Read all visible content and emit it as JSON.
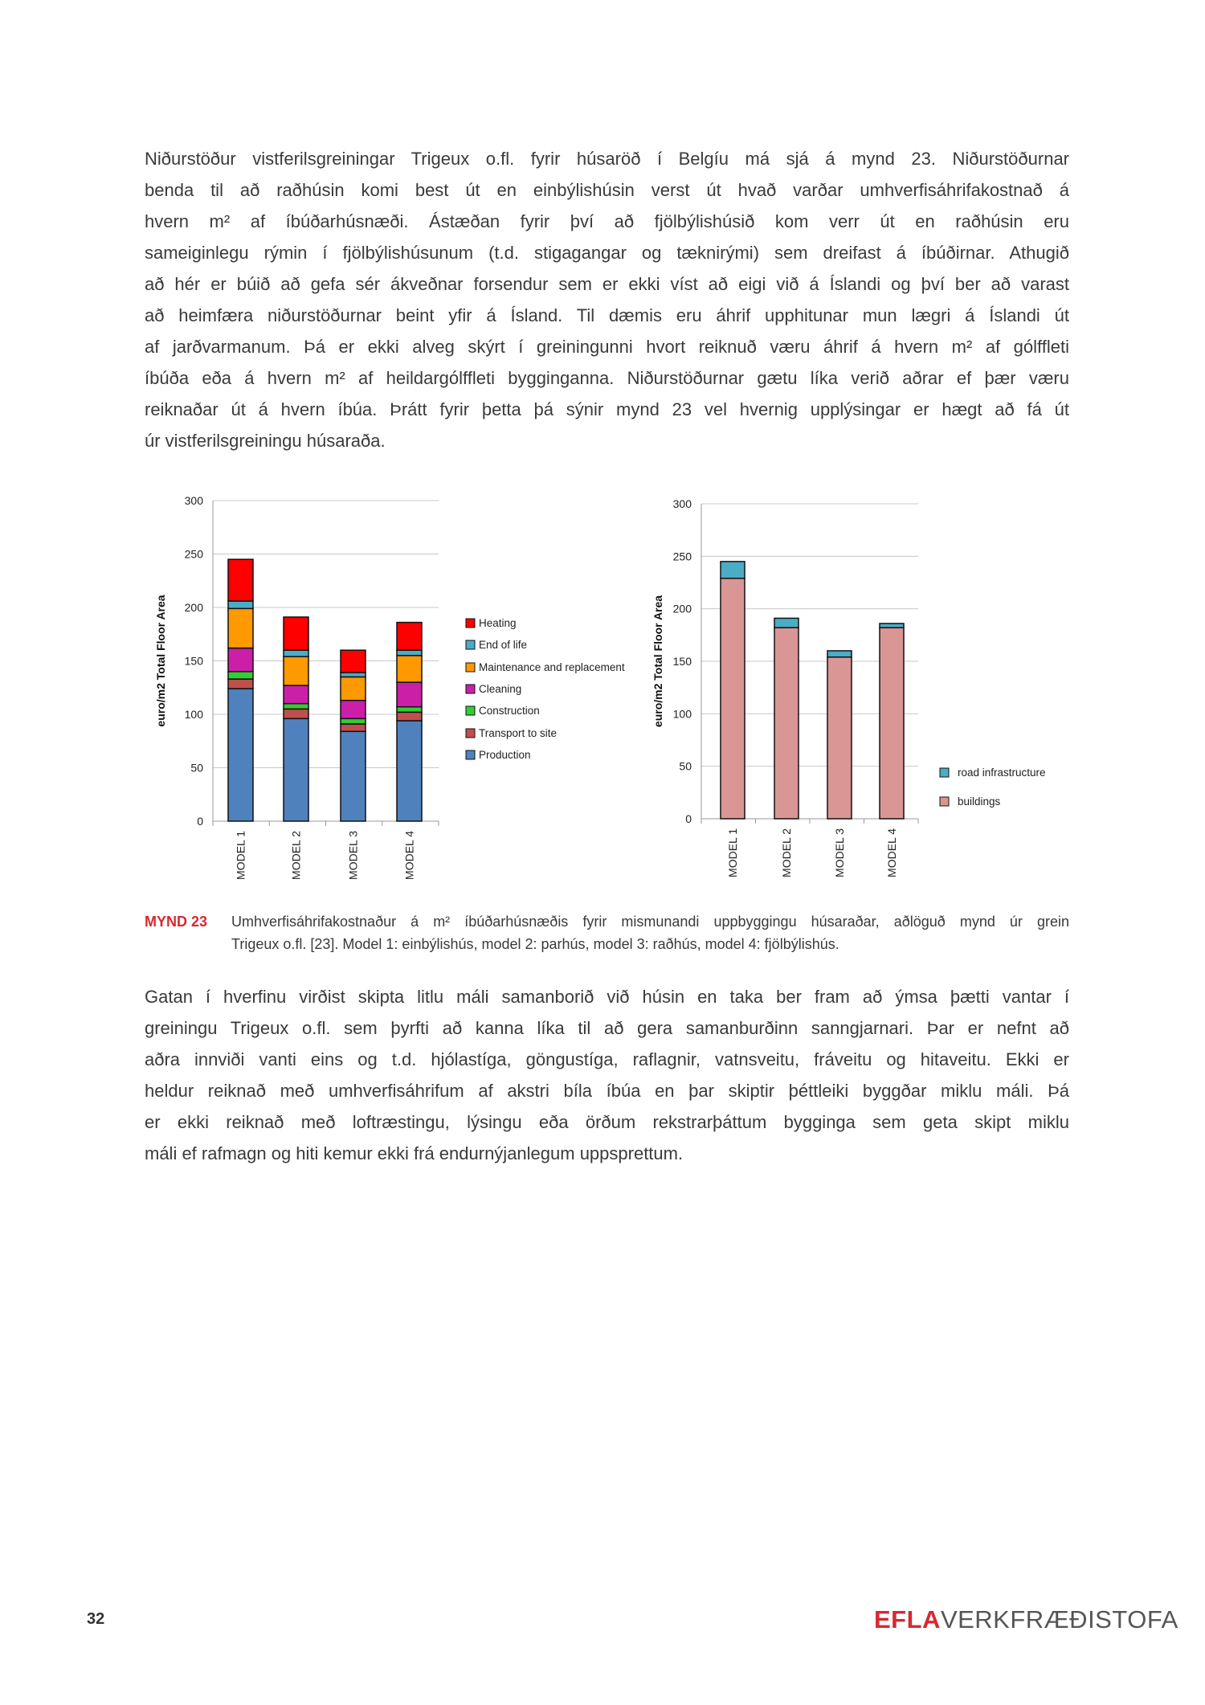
{
  "paragraph1": [
    "Niðurstöður vistferilsgreiningar Trigeux o.fl. fyrir húsaröð í Belgíu má sjá á mynd 23. Niðurstöðurnar",
    "benda til að raðhúsin komi best út en einbýlishúsin verst út hvað varðar umhverfisáhrifakostnað á",
    "hvern m² af íbúðarhúsnæði. Ástæðan fyrir því að fjölbýlishúsið kom verr út en raðhúsin eru",
    "sameiginlegu rýmin í fjölbýlishúsunum (t.d. stigagangar og tæknirými) sem dreifast á íbúðirnar. Athugið",
    "að hér er búið að gefa sér ákveðnar forsendur sem er ekki víst að eigi við á Íslandi og því ber að varast",
    "að heimfæra niðurstöðurnar beint yfir á Ísland. Til dæmis eru áhrif upphitunar mun lægri á Íslandi út",
    "af jarðvarmanum. Þá er ekki alveg skýrt í greiningunni hvort reiknuð væru áhrif á hvern m² af gólffleti",
    "íbúða eða á hvern m² af heildargólffleti bygginganna. Niðurstöðurnar gætu líka verið aðrar ef þær væru",
    "reiknaðar út á hvern íbúa. Þrátt fyrir þetta þá sýnir mynd 23 vel hvernig upplýsingar er hægt að fá út",
    "úr vistferilsgreiningu húsaraða."
  ],
  "caption": {
    "label": "MYND 23",
    "lines": [
      "Umhverfisáhrifakostnaður á m² íbúðarhúsnæðis fyrir mismunandi uppbyggingu húsaraðar, aðlöguð mynd úr grein",
      "Trigeux o.fl. [23]. Model 1: einbýlishús, model 2: parhús, model 3: raðhús, model 4: fjölbýlishús."
    ]
  },
  "paragraph2": [
    "Gatan í hverfinu virðist skipta litlu máli samanborið við húsin en taka ber fram að ýmsa þætti vantar í",
    "greiningu Trigeux o.fl. sem þyrfti að kanna líka til að gera samanburðinn sanngjarnari. Þar er nefnt að",
    "aðra innviði vanti eins og t.d. hjólastíga, göngustíga, raflagnir, vatnsveitu, fráveitu og hitaveitu. Ekki er",
    "heldur reiknað með umhverfisáhrifum af akstri bíla íbúa en þar skiptir þéttleiki byggðar miklu máli. Þá",
    "er ekki reiknað með loftræstingu, lýsingu eða örðum rekstrarþáttum bygginga sem geta skipt miklu",
    "máli ef rafmagn og hiti kemur ekki frá endurnýjanlegum uppsprettum."
  ],
  "footer": {
    "page_number": "32",
    "logo_brand": "EFLA",
    "logo_rest": "VERKFRÆÐISTOFA",
    "brand_color": "#d8282f"
  },
  "chart_data": [
    {
      "type": "bar",
      "stacked": true,
      "categories": [
        "MODEL 1",
        "MODEL 2",
        "MODEL 3",
        "MODEL 4"
      ],
      "ylabel": "euro/m2 Total Floor Area",
      "ylim": [
        0,
        300
      ],
      "yticks": [
        "0",
        "50",
        "100",
        "150",
        "200",
        "250",
        "300"
      ],
      "grid": true,
      "legend_placement": "right",
      "series": [
        {
          "name": "Production",
          "color": "#4f81bd",
          "values": [
            124,
            96,
            84,
            94
          ]
        },
        {
          "name": "Transport to site",
          "color": "#c0504d",
          "values": [
            9,
            9,
            7,
            8
          ]
        },
        {
          "name": "Construction",
          "color": "#33cc33",
          "values": [
            7,
            5,
            5,
            5
          ]
        },
        {
          "name": "Cleaning",
          "color": "#cc1fa8",
          "values": [
            22,
            17,
            17,
            23
          ]
        },
        {
          "name": "Maintenance and replacement",
          "color": "#ff9900",
          "values": [
            37,
            27,
            22,
            25
          ]
        },
        {
          "name": "End of life",
          "color": "#4bacc6",
          "values": [
            7,
            6,
            4,
            5
          ]
        },
        {
          "name": "Heating",
          "color": "#ff0000",
          "values": [
            39,
            31,
            21,
            26
          ]
        }
      ]
    },
    {
      "type": "bar",
      "stacked": true,
      "categories": [
        "MODEL 1",
        "MODEL 2",
        "MODEL 3",
        "MODEL 4"
      ],
      "ylabel": "euro/m2 Total Floor Area",
      "ylim": [
        0,
        300
      ],
      "yticks": [
        "0",
        "50",
        "100",
        "150",
        "200",
        "250",
        "300"
      ],
      "grid": true,
      "legend_placement": "bottom-right",
      "series": [
        {
          "name": "buildings",
          "color": "#d99694",
          "values": [
            229,
            182,
            154,
            182
          ]
        },
        {
          "name": "road infrastructure",
          "color": "#4bacc6",
          "values": [
            16,
            9,
            6,
            4
          ]
        }
      ]
    }
  ]
}
